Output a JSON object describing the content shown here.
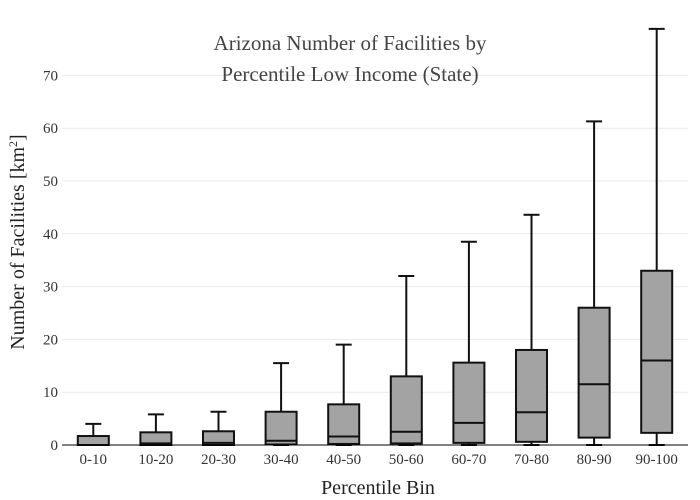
{
  "chart_data": {
    "type": "box",
    "title_lines": [
      "Arizona Number of Facilities by",
      "Percentile Low Income (State)"
    ],
    "xlabel": "Percentile Bin",
    "ylabel_main": "Number of Facilities  [km",
    "ylabel_sup": "2",
    "ylabel_end": "]",
    "ylim": [
      0,
      78
    ],
    "yticks": [
      0,
      10,
      20,
      30,
      40,
      50,
      60,
      70
    ],
    "grid": true,
    "box_color": "#a3a3a3",
    "categories": [
      "0-10",
      "10-20",
      "20-30",
      "30-40",
      "40-50",
      "50-60",
      "60-70",
      "70-80",
      "80-90",
      "90-100"
    ],
    "boxes": [
      {
        "min": 0,
        "q1": 0,
        "median": 0,
        "q3": 1.7,
        "max": 4
      },
      {
        "min": 0,
        "q1": 0,
        "median": 0.3,
        "q3": 2.4,
        "max": 5.8
      },
      {
        "min": 0,
        "q1": 0,
        "median": 0.4,
        "q3": 2.6,
        "max": 6.3
      },
      {
        "min": 0,
        "q1": 0.1,
        "median": 0.8,
        "q3": 6.3,
        "max": 15.5
      },
      {
        "min": 0,
        "q1": 0.2,
        "median": 1.6,
        "q3": 7.7,
        "max": 19
      },
      {
        "min": 0,
        "q1": 0.3,
        "median": 2.5,
        "q3": 13,
        "max": 32
      },
      {
        "min": 0,
        "q1": 0.4,
        "median": 4.2,
        "q3": 15.6,
        "max": 38.5
      },
      {
        "min": 0,
        "q1": 0.6,
        "median": 6.2,
        "q3": 18,
        "max": 43.6
      },
      {
        "min": 0,
        "q1": 1.4,
        "median": 11.5,
        "q3": 26,
        "max": 61.3
      },
      {
        "min": 0,
        "q1": 2.3,
        "median": 16,
        "q3": 33,
        "max": 78.8
      }
    ]
  }
}
